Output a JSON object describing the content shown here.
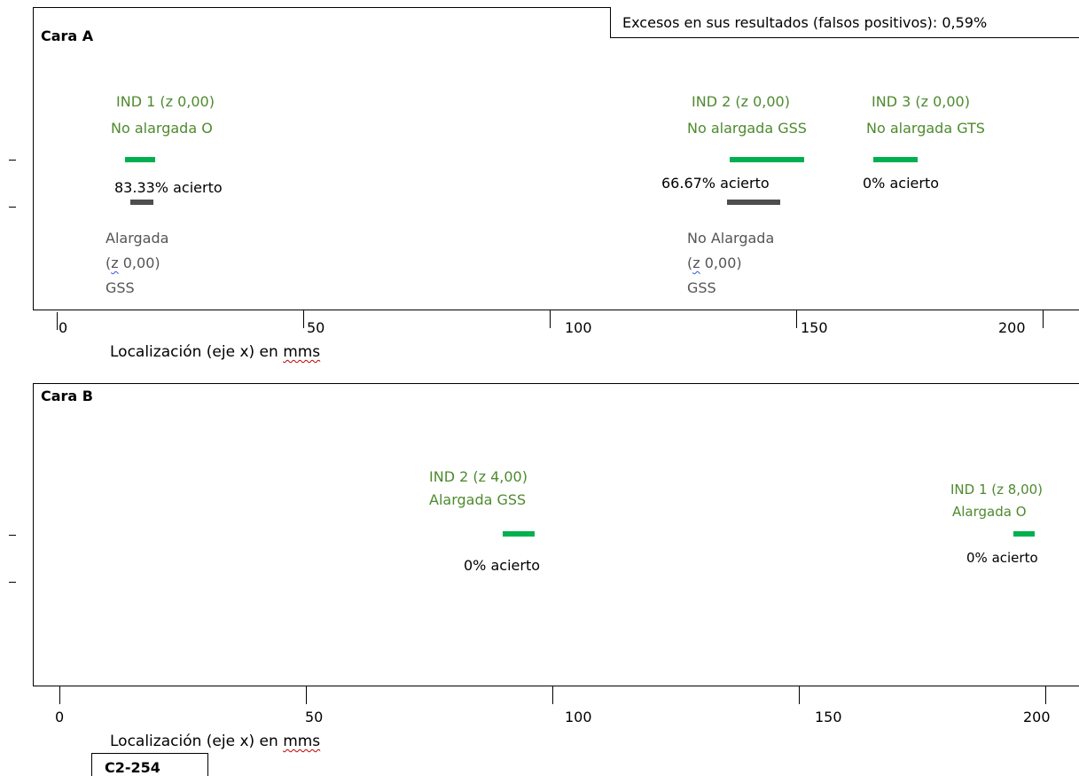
{
  "false_positives_text": "Excesos en sus resultados (falsos positivos): 0,59%",
  "panel_a": {
    "title": "Cara A",
    "ind1": {
      "line1": "IND 1 (z 0,00)",
      "line2": "No alargada O",
      "accuracy": "83.33%  acierto"
    },
    "ind2": {
      "line1": "IND 2 (z 0,00)",
      "line2": "No alargada GSS",
      "accuracy": "66.67%  acierto"
    },
    "ind3": {
      "line1": "IND 3 (z 0,00)",
      "line2": "No alargada GTS",
      "accuracy": "0% acierto"
    },
    "ref1": {
      "line1": "Alargada",
      "line2_pre": "(",
      "line2_z": "z",
      "line2_post": " 0,00)",
      "line3": "GSS"
    },
    "ref2": {
      "line1": "No Alargada",
      "line2_pre": "(",
      "line2_z": "z",
      "line2_post": " 0,00)",
      "line3": "GSS"
    },
    "x_ticks": [
      "0",
      "50",
      "100",
      "150",
      "200"
    ],
    "x_label_pre": "Localización (eje x) en ",
    "x_label_unit": "mms"
  },
  "panel_b": {
    "title": "Cara B",
    "ind2": {
      "line1": "IND 2 (z 4,00)",
      "line2": "Alargada GSS",
      "accuracy": "0% acierto"
    },
    "ind1": {
      "line1": "IND 1 (z 8,00)",
      "line2": "Alargada O",
      "accuracy": "0% acierto"
    },
    "x_ticks": [
      "0",
      "50",
      "100",
      "150",
      "200"
    ],
    "x_label_pre": "Localización (eje x) en ",
    "x_label_unit": "mms"
  },
  "code_label": "C2-254",
  "colors": {
    "indication_bar": "#00b050",
    "reference_bar": "#4d4d4d",
    "indication_text": "#4e8a2e"
  }
}
